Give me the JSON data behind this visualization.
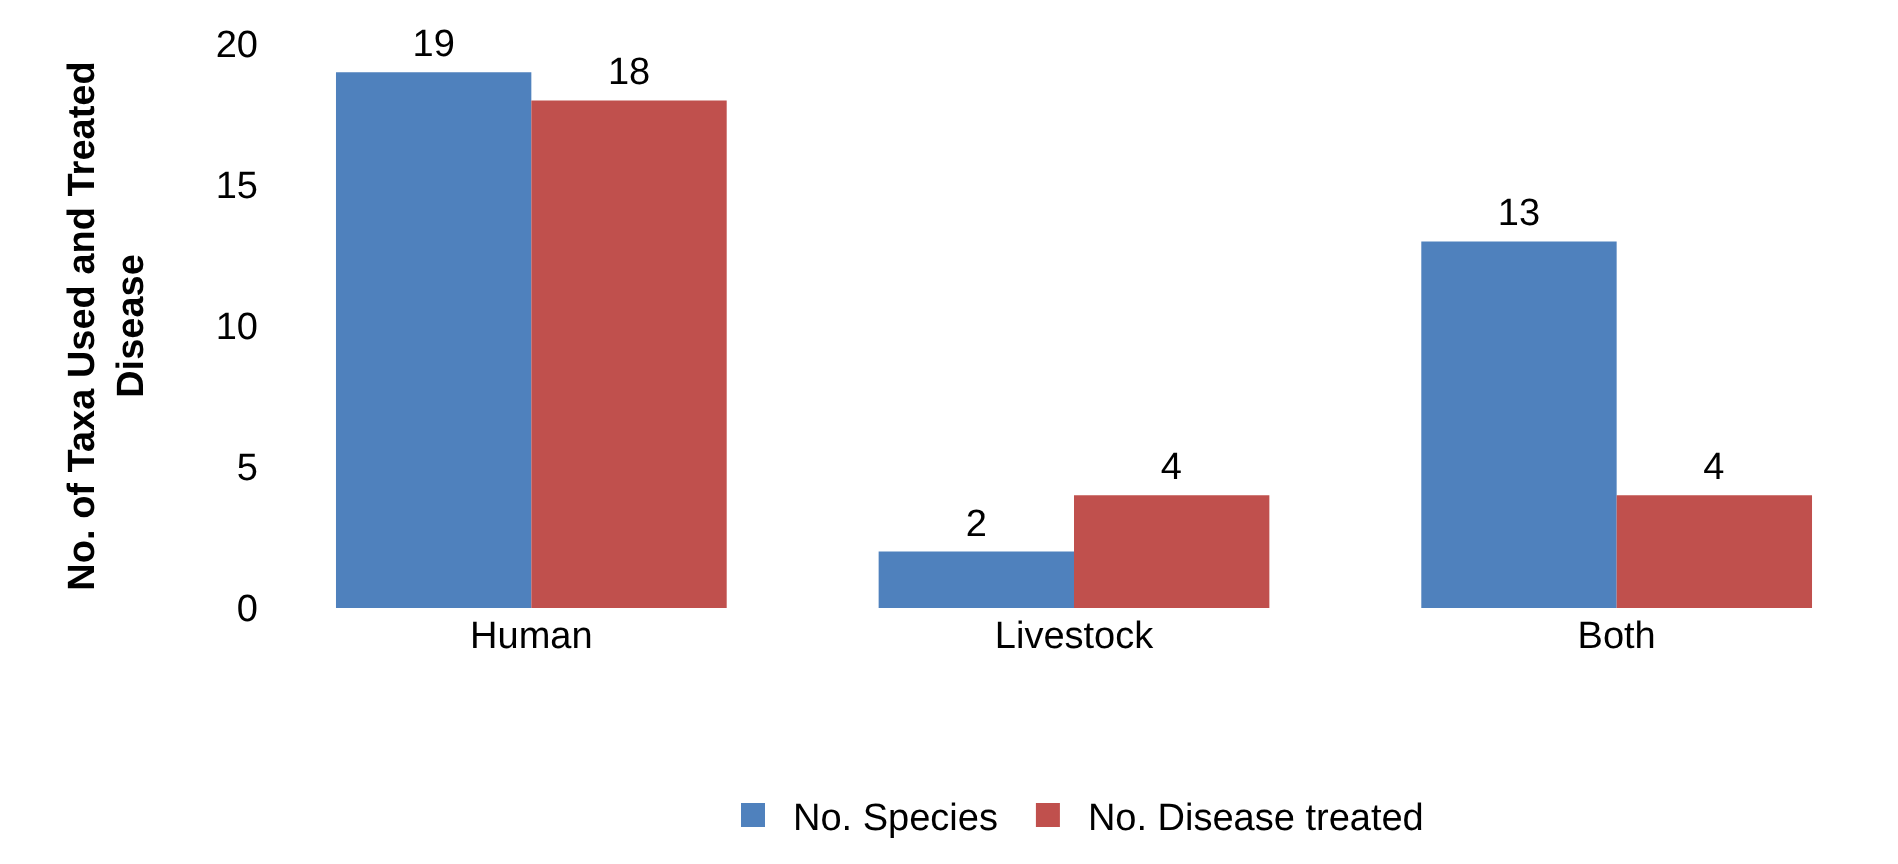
{
  "chart_data": {
    "type": "bar",
    "ylabel": "No. of Taxa Used and Treated\nDisease",
    "categories": [
      "Human",
      "Livestock",
      "Both"
    ],
    "series": [
      {
        "name": "No. Species",
        "color": "#4f81bd",
        "values": [
          19,
          2,
          13
        ]
      },
      {
        "name": "No. Disease treated",
        "color": "#c0504d",
        "values": [
          18,
          4,
          4
        ]
      }
    ],
    "ylim": [
      0,
      20
    ],
    "yticks": [
      0,
      5,
      10,
      15,
      20
    ],
    "grid": false,
    "legend": "bottom",
    "data_labels": true
  }
}
